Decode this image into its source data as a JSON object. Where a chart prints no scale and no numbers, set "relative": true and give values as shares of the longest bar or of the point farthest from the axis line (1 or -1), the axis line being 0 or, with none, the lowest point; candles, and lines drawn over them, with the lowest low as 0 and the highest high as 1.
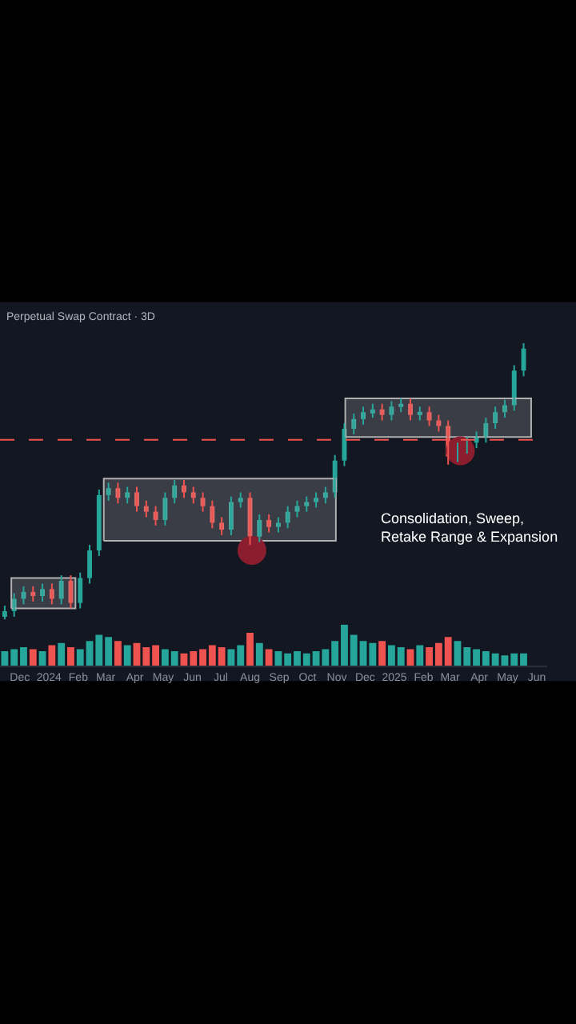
{
  "chart_data": [
    {
      "type": "candlestick",
      "title": "Perpetual Swap Contract · 3D",
      "relative": true,
      "tick_labels": false,
      "grid": false,
      "x": [
        "2023-11-15",
        "2023-11-25",
        "2023-12-05",
        "2023-12-15",
        "2023-12-25",
        "2024-01-04",
        "2024-01-14",
        "2024-01-24",
        "2024-02-03",
        "2024-02-13",
        "2024-02-23",
        "2024-03-04",
        "2024-03-14",
        "2024-03-24",
        "2024-04-03",
        "2024-04-13",
        "2024-04-23",
        "2024-05-03",
        "2024-05-13",
        "2024-05-23",
        "2024-06-02",
        "2024-06-12",
        "2024-06-22",
        "2024-07-02",
        "2024-07-12",
        "2024-07-22",
        "2024-08-01",
        "2024-08-11",
        "2024-08-21",
        "2024-08-31",
        "2024-09-10",
        "2024-09-20",
        "2024-09-30",
        "2024-10-10",
        "2024-10-20",
        "2024-10-30",
        "2024-11-09",
        "2024-11-19",
        "2024-11-29",
        "2024-12-09",
        "2024-12-19",
        "2024-12-29",
        "2025-01-08",
        "2025-01-18",
        "2025-01-28",
        "2025-02-07",
        "2025-02-17",
        "2025-02-27",
        "2025-03-09",
        "2025-03-19",
        "2025-03-29",
        "2025-04-08",
        "2025-04-18",
        "2025-04-28",
        "2025-05-08",
        "2025-05-18"
      ],
      "ohlc": [
        [
          0.01,
          0.05,
          0,
          0.03
        ],
        [
          0.03,
          0.095,
          0.01,
          0.075
        ],
        [
          0.075,
          0.12,
          0.055,
          0.1
        ],
        [
          0.1,
          0.12,
          0.065,
          0.085
        ],
        [
          0.085,
          0.13,
          0.065,
          0.11
        ],
        [
          0.11,
          0.13,
          0.055,
          0.075
        ],
        [
          0.075,
          0.16,
          0.055,
          0.14
        ],
        [
          0.14,
          0.16,
          0.04,
          0.06
        ],
        [
          0.06,
          0.17,
          0.04,
          0.15
        ],
        [
          0.15,
          0.27,
          0.13,
          0.25
        ],
        [
          0.25,
          0.47,
          0.23,
          0.45
        ],
        [
          0.45,
          0.495,
          0.43,
          0.475
        ],
        [
          0.475,
          0.495,
          0.42,
          0.44
        ],
        [
          0.44,
          0.48,
          0.42,
          0.46
        ],
        [
          0.46,
          0.48,
          0.39,
          0.41
        ],
        [
          0.41,
          0.43,
          0.37,
          0.39
        ],
        [
          0.39,
          0.41,
          0.34,
          0.36
        ],
        [
          0.36,
          0.46,
          0.34,
          0.44
        ],
        [
          0.44,
          0.505,
          0.42,
          0.485
        ],
        [
          0.485,
          0.505,
          0.44,
          0.46
        ],
        [
          0.46,
          0.48,
          0.42,
          0.44
        ],
        [
          0.44,
          0.46,
          0.39,
          0.41
        ],
        [
          0.41,
          0.43,
          0.33,
          0.35
        ],
        [
          0.35,
          0.37,
          0.305,
          0.325
        ],
        [
          0.325,
          0.445,
          0.305,
          0.425
        ],
        [
          0.425,
          0.46,
          0.405,
          0.44
        ],
        [
          0.44,
          0.46,
          0.27,
          0.3
        ],
        [
          0.3,
          0.38,
          0.28,
          0.36
        ],
        [
          0.36,
          0.38,
          0.315,
          0.335
        ],
        [
          0.335,
          0.37,
          0.315,
          0.35
        ],
        [
          0.35,
          0.41,
          0.33,
          0.39
        ],
        [
          0.39,
          0.43,
          0.37,
          0.41
        ],
        [
          0.41,
          0.445,
          0.39,
          0.425
        ],
        [
          0.425,
          0.46,
          0.405,
          0.44
        ],
        [
          0.44,
          0.48,
          0.42,
          0.46
        ],
        [
          0.46,
          0.595,
          0.44,
          0.575
        ],
        [
          0.575,
          0.71,
          0.555,
          0.69
        ],
        [
          0.69,
          0.745,
          0.67,
          0.725
        ],
        [
          0.725,
          0.77,
          0.705,
          0.75
        ],
        [
          0.75,
          0.78,
          0.73,
          0.76
        ],
        [
          0.76,
          0.78,
          0.72,
          0.74
        ],
        [
          0.74,
          0.79,
          0.72,
          0.77
        ],
        [
          0.77,
          0.8,
          0.75,
          0.78
        ],
        [
          0.78,
          0.8,
          0.72,
          0.74
        ],
        [
          0.74,
          0.77,
          0.72,
          0.75
        ],
        [
          0.75,
          0.77,
          0.7,
          0.72
        ],
        [
          0.72,
          0.74,
          0.68,
          0.7
        ],
        [
          0.7,
          0.72,
          0.56,
          0.59
        ],
        [
          0.59,
          0.64,
          0.57,
          0.62
        ],
        [
          0.62,
          0.66,
          0.6,
          0.64
        ],
        [
          0.64,
          0.68,
          0.62,
          0.66
        ],
        [
          0.66,
          0.73,
          0.64,
          0.71
        ],
        [
          0.71,
          0.77,
          0.69,
          0.75
        ],
        [
          0.75,
          0.795,
          0.73,
          0.775
        ],
        [
          0.775,
          0.92,
          0.755,
          0.9
        ],
        [
          0.9,
          1.0,
          0.88,
          0.98
        ]
      ],
      "xlim": [
        "2023-11-10",
        "2025-06-12"
      ],
      "series": [
        {
          "type": "area",
          "color": "#b0b0b0",
          "x": [
            "2023-11-22",
            "2024-01-29",
            "2024-01-29",
            "2023-11-22",
            "2023-11-22"
          ],
          "values": [
            0.04,
            0.04,
            0.15,
            0.15,
            0.04
          ]
        },
        {
          "type": "area",
          "color": "#b0b0b0",
          "x": [
            "2024-02-28",
            "2024-10-31",
            "2024-10-31",
            "2024-02-28",
            "2024-02-28"
          ],
          "values": [
            0.285,
            0.285,
            0.51,
            0.51,
            0.285
          ]
        },
        {
          "type": "area",
          "color": "#b0b0b0",
          "x": [
            "2024-11-10",
            "2025-05-26",
            "2025-05-26",
            "2024-11-10",
            "2024-11-10"
          ],
          "values": [
            0.66,
            0.66,
            0.8,
            0.8,
            0.66
          ]
        },
        {
          "type": "scatter",
          "marker": "circle",
          "color": "#8b1e2e",
          "x": [
            "2024-08-03",
            "2025-03-12"
          ],
          "values": [
            0.25,
            0.61
          ]
        }
      ],
      "ref_lines": [
        {
          "axis": "y",
          "value": 0.65,
          "color": "#ef5350",
          "line_style": "dashed"
        }
      ],
      "annotations": [
        "Consolidation, Sweep,\nRetake Range & Expansion"
      ]
    },
    {
      "type": "bar",
      "relative": true,
      "tick_labels": "x",
      "grid": false,
      "x": [
        "2023-11-15",
        "2023-11-25",
        "2023-12-05",
        "2023-12-15",
        "2023-12-25",
        "2024-01-04",
        "2024-01-14",
        "2024-01-24",
        "2024-02-03",
        "2024-02-13",
        "2024-02-23",
        "2024-03-04",
        "2024-03-14",
        "2024-03-24",
        "2024-04-03",
        "2024-04-13",
        "2024-04-23",
        "2024-05-03",
        "2024-05-13",
        "2024-05-23",
        "2024-06-02",
        "2024-06-12",
        "2024-06-22",
        "2024-07-02",
        "2024-07-12",
        "2024-07-22",
        "2024-08-01",
        "2024-08-11",
        "2024-08-21",
        "2024-08-31",
        "2024-09-10",
        "2024-09-20",
        "2024-09-30",
        "2024-10-10",
        "2024-10-20",
        "2024-10-30",
        "2024-11-09",
        "2024-11-19",
        "2024-11-29",
        "2024-12-09",
        "2024-12-19",
        "2024-12-29",
        "2025-01-08",
        "2025-01-18",
        "2025-01-28",
        "2025-02-07",
        "2025-02-17",
        "2025-02-27",
        "2025-03-09",
        "2025-03-19",
        "2025-03-29",
        "2025-04-08",
        "2025-04-18",
        "2025-04-28",
        "2025-05-08",
        "2025-05-18"
      ],
      "values": [
        0.35,
        0.4,
        0.45,
        0.4,
        0.35,
        0.5,
        0.55,
        0.45,
        0.4,
        0.6,
        0.75,
        0.7,
        0.6,
        0.5,
        0.55,
        0.45,
        0.5,
        0.4,
        0.35,
        0.3,
        0.35,
        0.4,
        0.5,
        0.45,
        0.4,
        0.5,
        0.8,
        0.55,
        0.4,
        0.35,
        0.3,
        0.35,
        0.3,
        0.35,
        0.4,
        0.6,
        1.0,
        0.75,
        0.6,
        0.55,
        0.6,
        0.5,
        0.45,
        0.4,
        0.5,
        0.45,
        0.55,
        0.7,
        0.6,
        0.45,
        0.4,
        0.35,
        0.3,
        0.25,
        0.3,
        0.3
      ],
      "colors": [
        "#26a69a",
        "#26a69a",
        "#26a69a",
        "#ef5350",
        "#26a69a",
        "#ef5350",
        "#26a69a",
        "#ef5350",
        "#26a69a",
        "#26a69a",
        "#26a69a",
        "#26a69a",
        "#ef5350",
        "#26a69a",
        "#ef5350",
        "#ef5350",
        "#ef5350",
        "#26a69a",
        "#26a69a",
        "#ef5350",
        "#ef5350",
        "#ef5350",
        "#ef5350",
        "#ef5350",
        "#26a69a",
        "#26a69a",
        "#ef5350",
        "#26a69a",
        "#ef5350",
        "#26a69a",
        "#26a69a",
        "#26a69a",
        "#26a69a",
        "#26a69a",
        "#26a69a",
        "#26a69a",
        "#26a69a",
        "#26a69a",
        "#26a69a",
        "#26a69a",
        "#ef5350",
        "#26a69a",
        "#26a69a",
        "#ef5350",
        "#26a69a",
        "#ef5350",
        "#ef5350",
        "#ef5350",
        "#26a69a",
        "#26a69a",
        "#26a69a",
        "#26a69a",
        "#26a69a",
        "#26a69a",
        "#26a69a",
        "#26a69a"
      ],
      "xlim": [
        "2023-11-10",
        "2025-06-12"
      ],
      "xticks": [
        {
          "value": "2023-12-01",
          "label": "Dec"
        },
        {
          "value": "2024-01-01",
          "label": "2024"
        },
        {
          "value": "2024-02-01",
          "label": "Feb"
        },
        {
          "value": "2024-03-01",
          "label": "Mar"
        },
        {
          "value": "2024-04-01",
          "label": "Apr"
        },
        {
          "value": "2024-05-01",
          "label": "May"
        },
        {
          "value": "2024-06-01",
          "label": "Jun"
        },
        {
          "value": "2024-07-01",
          "label": "Jul"
        },
        {
          "value": "2024-08-01",
          "label": "Aug"
        },
        {
          "value": "2024-09-01",
          "label": "Sep"
        },
        {
          "value": "2024-10-01",
          "label": "Oct"
        },
        {
          "value": "2024-11-01",
          "label": "Nov"
        },
        {
          "value": "2024-12-01",
          "label": "Dec"
        },
        {
          "value": "2025-01-01",
          "label": "2025"
        },
        {
          "value": "2025-02-01",
          "label": "Feb"
        },
        {
          "value": "2025-03-01",
          "label": "Mar"
        },
        {
          "value": "2025-04-01",
          "label": "Apr"
        },
        {
          "value": "2025-05-01",
          "label": "May"
        },
        {
          "value": "2025-06-01",
          "label": "Jun"
        }
      ]
    }
  ]
}
